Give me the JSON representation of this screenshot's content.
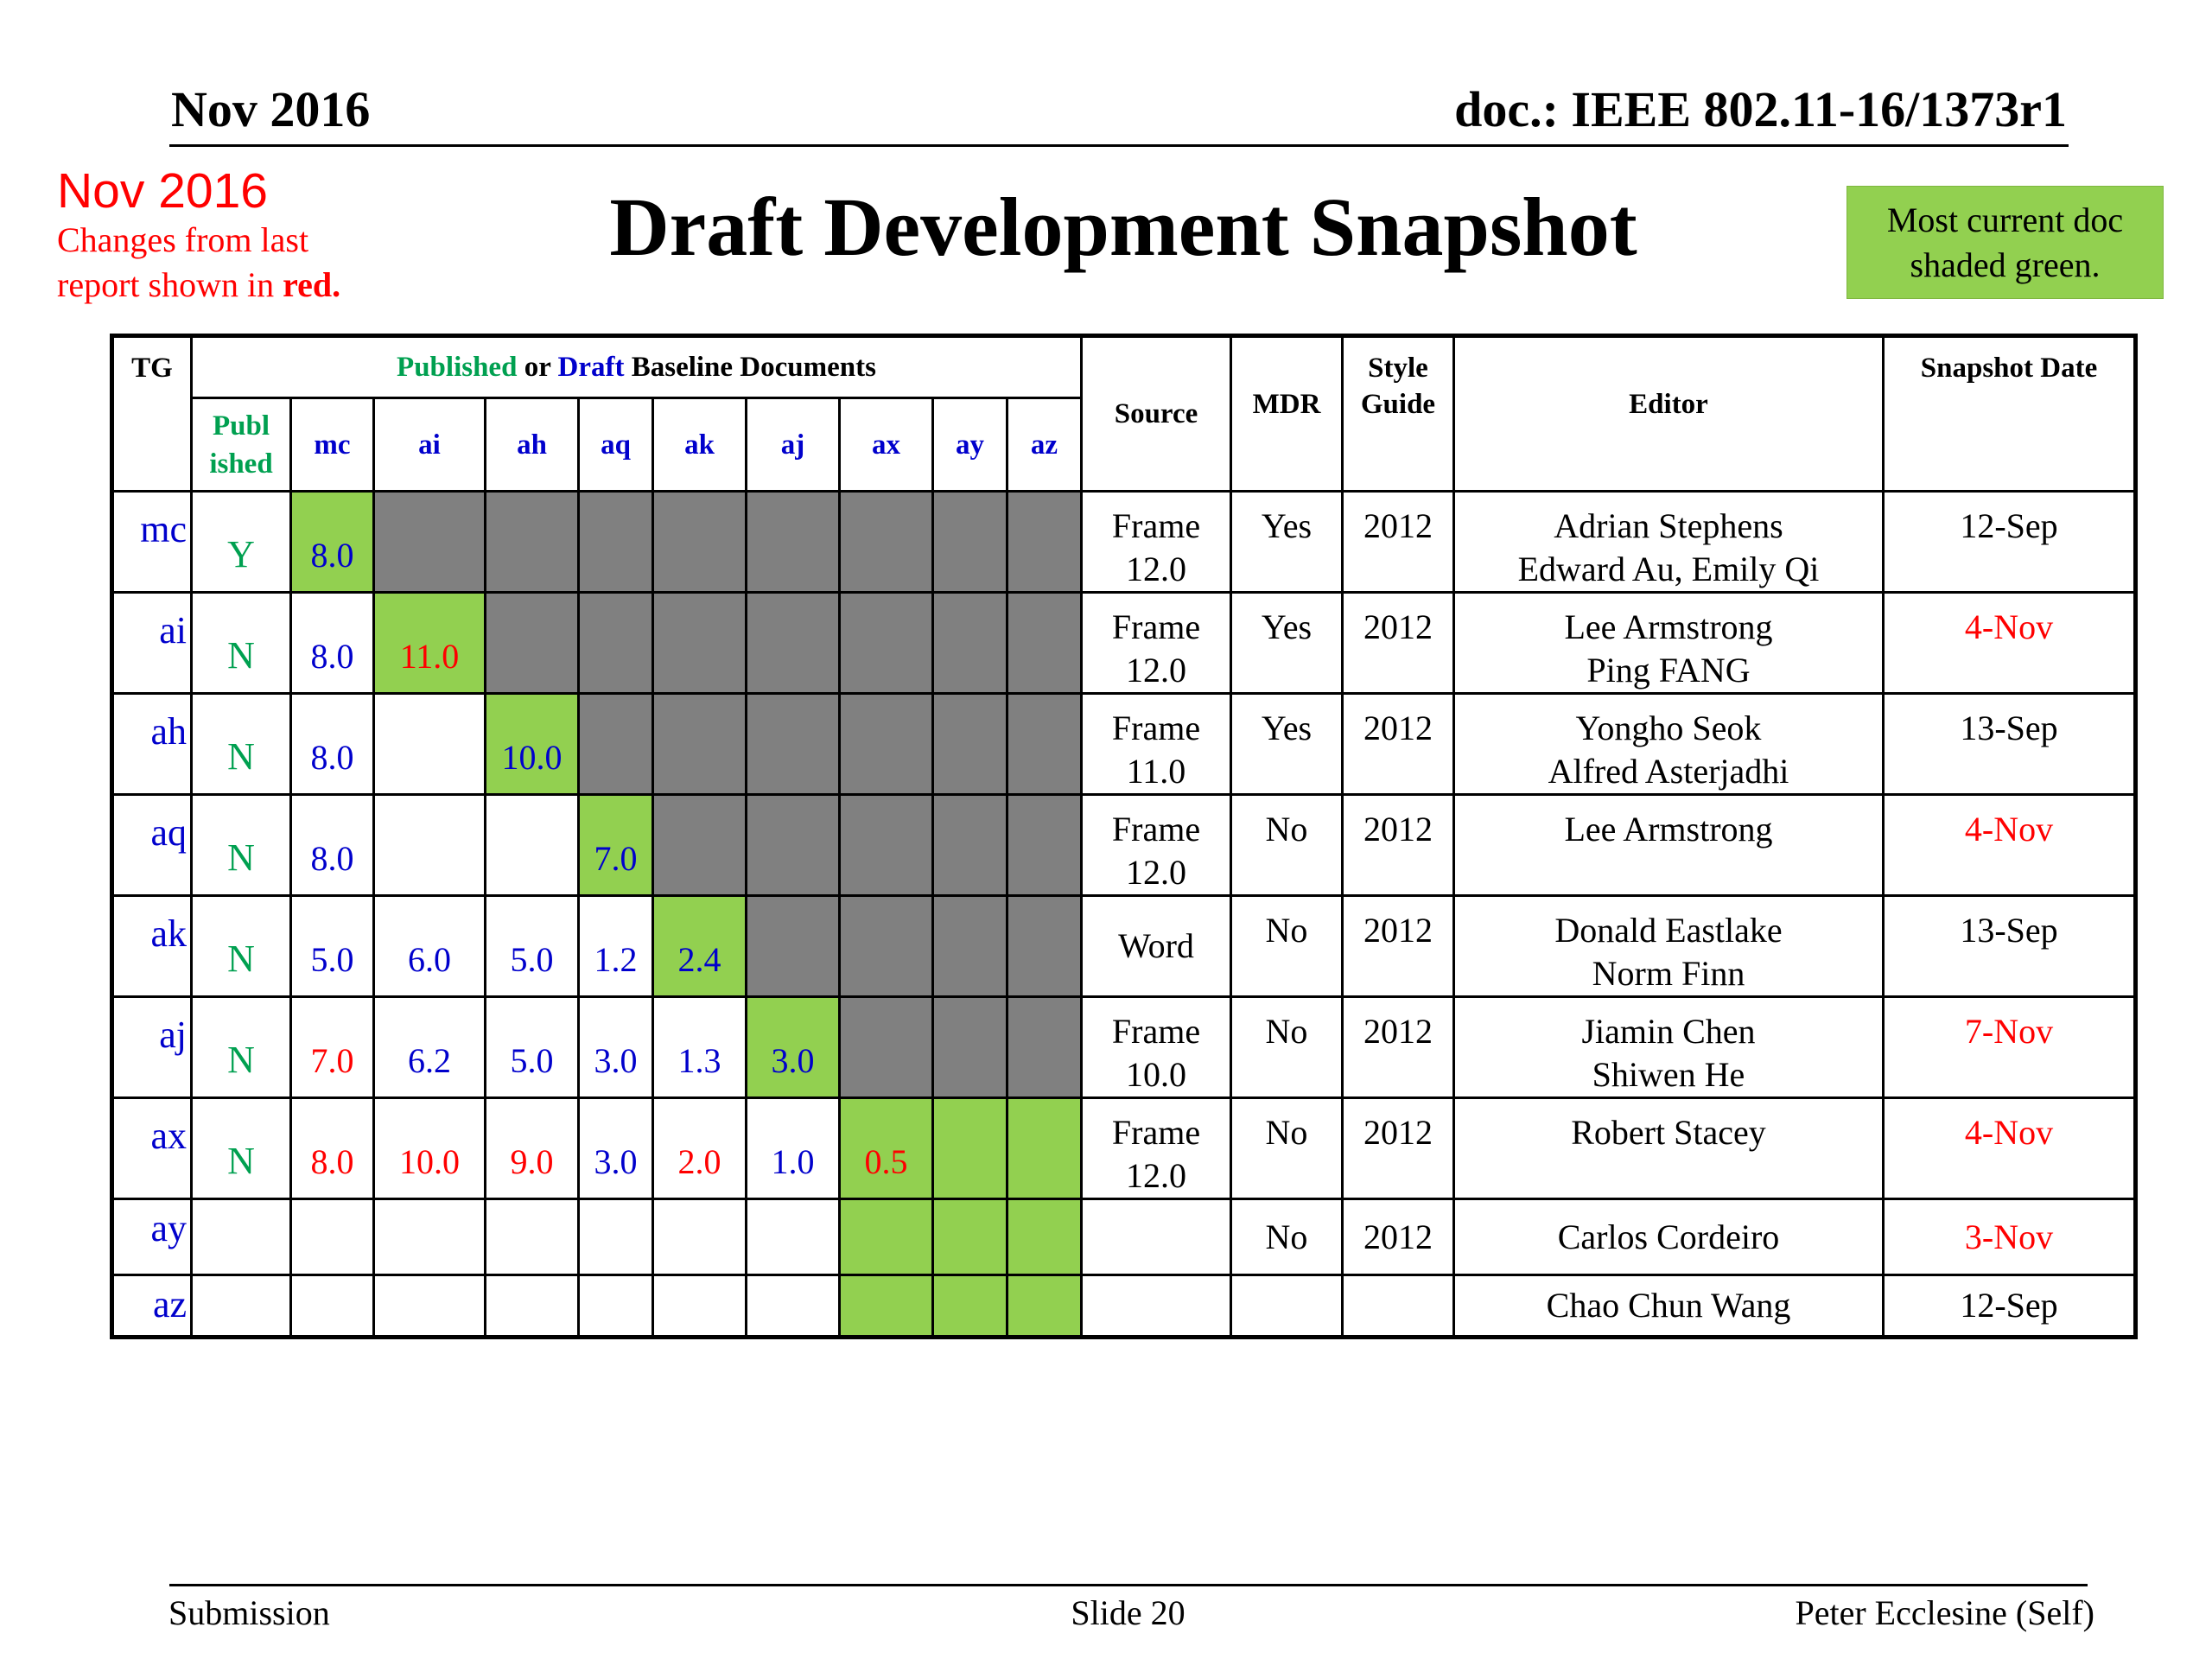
{
  "header": {
    "date": "Nov 2016",
    "doc_id": "doc.: IEEE 802.11-16/1373r1"
  },
  "note": {
    "date": "Nov 2016",
    "line1": "Changes from  last",
    "line2_prefix": "report shown in ",
    "line2_red": "red."
  },
  "title": "Draft Development Snapshot",
  "legend": {
    "line1": "Most current doc",
    "line2": "shaded green."
  },
  "table": {
    "headers": {
      "tg": "TG",
      "baseline_published": "Published",
      "baseline_or": " or ",
      "baseline_draft": "Draft",
      "baseline_rest": " Baseline Documents",
      "published_1": "Publ",
      "published_2": "ished",
      "cols": [
        "mc",
        "ai",
        "ah",
        "aq",
        "ak",
        "aj",
        "ax",
        "ay",
        "az"
      ],
      "source": "Source",
      "mdr": "MDR",
      "style_guide_1": "Style",
      "style_guide_2": "Guide",
      "editor": "Editor",
      "snapshot_date": "Snapshot Date"
    },
    "rows": [
      {
        "tg": "mc",
        "pub": "Y",
        "vals": [
          "8.0",
          "",
          "",
          "",
          "",
          "",
          "",
          "",
          ""
        ],
        "source1": "Frame",
        "source2": "12.0",
        "mdr": "Yes",
        "style": "2012",
        "editor1": "Adrian Stephens",
        "editor2": "Edward Au, Emily Qi",
        "date": "12-Sep"
      },
      {
        "tg": "ai",
        "pub": "N",
        "vals": [
          "8.0",
          "11.0",
          "",
          "",
          "",
          "",
          "",
          "",
          ""
        ],
        "source1": "Frame",
        "source2": "12.0",
        "mdr": "Yes",
        "style": "2012",
        "editor1": "Lee Armstrong",
        "editor2": "Ping FANG",
        "date": "4-Nov"
      },
      {
        "tg": "ah",
        "pub": "N",
        "vals": [
          "8.0",
          "",
          "10.0",
          "",
          "",
          "",
          "",
          "",
          ""
        ],
        "source1": "Frame",
        "source2": "11.0",
        "mdr": "Yes",
        "style": "2012",
        "editor1": "Yongho Seok",
        "editor2": "Alfred Asterjadhi",
        "date": "13-Sep"
      },
      {
        "tg": "aq",
        "pub": "N",
        "vals": [
          "8.0",
          "",
          "",
          "7.0",
          "",
          "",
          "",
          "",
          ""
        ],
        "source1": "Frame",
        "source2": "12.0",
        "mdr": "No",
        "style": "2012",
        "editor1": "Lee Armstrong",
        "editor2": "",
        "date": "4-Nov"
      },
      {
        "tg": "ak",
        "pub": "N",
        "vals": [
          "5.0",
          "6.0",
          "5.0",
          "1.2",
          "2.4",
          "",
          "",
          "",
          ""
        ],
        "source1": "Word",
        "source2": "",
        "mdr": "No",
        "style": "2012",
        "editor1": "Donald Eastlake",
        "editor2": "Norm Finn",
        "date": "13-Sep"
      },
      {
        "tg": "aj",
        "pub": "N",
        "vals": [
          "7.0",
          "6.2",
          "5.0",
          "3.0",
          "1.3",
          "3.0",
          "",
          "",
          ""
        ],
        "source1": "Frame",
        "source2": "10.0",
        "mdr": "No",
        "style": "2012",
        "editor1": "Jiamin Chen",
        "editor2": "Shiwen He",
        "date": "7-Nov"
      },
      {
        "tg": "ax",
        "pub": "N",
        "vals": [
          "8.0",
          "10.0",
          "9.0",
          "3.0",
          "2.0",
          "1.0",
          "0.5",
          "",
          ""
        ],
        "source1": "Frame",
        "source2": "12.0",
        "mdr": "No",
        "style": "2012",
        "editor1": "Robert Stacey",
        "editor2": "",
        "date": "4-Nov"
      },
      {
        "tg": "ay",
        "pub": "",
        "vals": [
          "",
          "",
          "",
          "",
          "",
          "",
          "",
          "",
          ""
        ],
        "source1": "",
        "source2": "",
        "mdr": "No",
        "style": "2012",
        "editor1": "Carlos Cordeiro",
        "editor2": "",
        "date": "3-Nov"
      },
      {
        "tg": "az",
        "pub": "",
        "vals": [
          "",
          "",
          "",
          "",
          "",
          "",
          "",
          "",
          ""
        ],
        "source1": "",
        "source2": "",
        "mdr": "",
        "style": "",
        "editor1": "Chao Chun Wang",
        "editor2": "",
        "date": "12-Sep"
      }
    ],
    "colors": {
      "current_fill": "#92d050",
      "na_fill": "#808080",
      "draft_text": "#0000cc",
      "published_text": "#00a050",
      "changed_text": "#ff0000"
    }
  },
  "footer": {
    "left": "Submission",
    "center": "Slide 20",
    "right": "Peter Ecclesine (Self)"
  }
}
